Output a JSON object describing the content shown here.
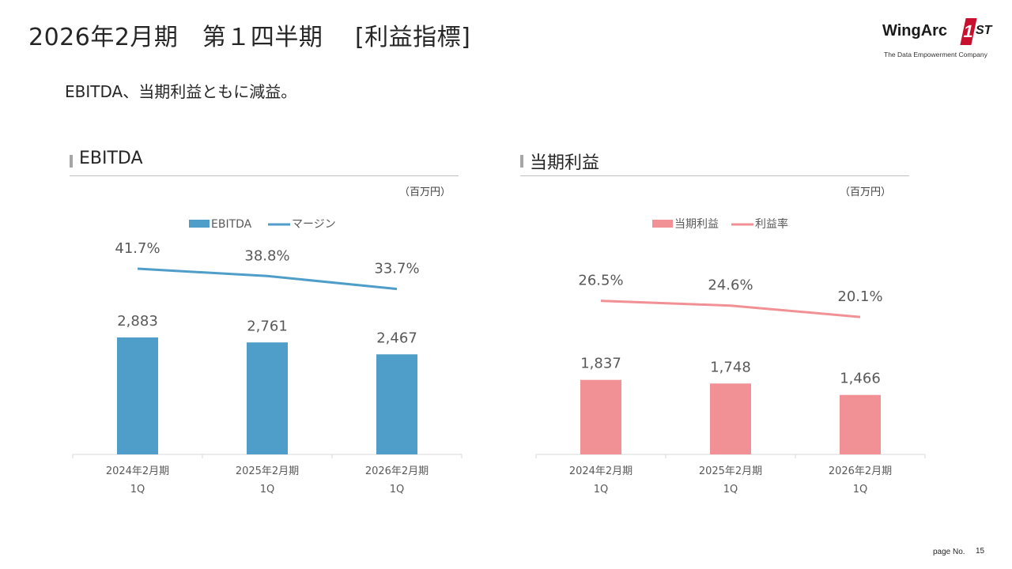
{
  "slide": {
    "title": "2026年2月期　第１四半期　 [利益指標]",
    "summary": "EBITDA、当期利益ともに減益。",
    "page_label": "page No.",
    "page_number": "15"
  },
  "logo": {
    "name": "WingArc",
    "mark": "1",
    "suffix": "ST",
    "tagline": "The Data Empowerment Company"
  },
  "colors": {
    "ebitda_bar": "#4f9ec9",
    "ebitda_line": "#4f9ec9",
    "profit_bar": "#f29195",
    "profit_line": "#f29195",
    "axis": "#d9d9d9",
    "label": "#595959",
    "logo_accent": "#c8102e"
  },
  "chart_data": [
    {
      "type": "bar",
      "title": "EBITDA",
      "unit": "（百万円）",
      "categories": [
        "2024年2月期",
        "2025年2月期",
        "2026年2月期"
      ],
      "category_sub": [
        "1Q",
        "1Q",
        "1Q"
      ],
      "series": [
        {
          "name": "EBITDA",
          "kind": "bar",
          "values": [
            2883,
            2761,
            2467
          ],
          "labels": [
            "2,883",
            "2,761",
            "2,467"
          ]
        },
        {
          "name": "マージン",
          "kind": "line",
          "values": [
            41.7,
            38.8,
            33.7
          ],
          "labels": [
            "41.7%",
            "38.8%",
            "33.7%"
          ]
        }
      ],
      "legend": "top-center",
      "grid": false
    },
    {
      "type": "bar",
      "title": "当期利益",
      "unit": "（百万円）",
      "categories": [
        "2024年2月期",
        "2025年2月期",
        "2026年2月期"
      ],
      "category_sub": [
        "1Q",
        "1Q",
        "1Q"
      ],
      "series": [
        {
          "name": "当期利益",
          "kind": "bar",
          "values": [
            1837,
            1748,
            1466
          ],
          "labels": [
            "1,837",
            "1,748",
            "1,466"
          ]
        },
        {
          "name": "利益率",
          "kind": "line",
          "values": [
            26.5,
            24.6,
            20.1
          ],
          "labels": [
            "26.5%",
            "24.6%",
            "20.1%"
          ]
        }
      ],
      "legend": "top-center",
      "grid": false
    }
  ]
}
